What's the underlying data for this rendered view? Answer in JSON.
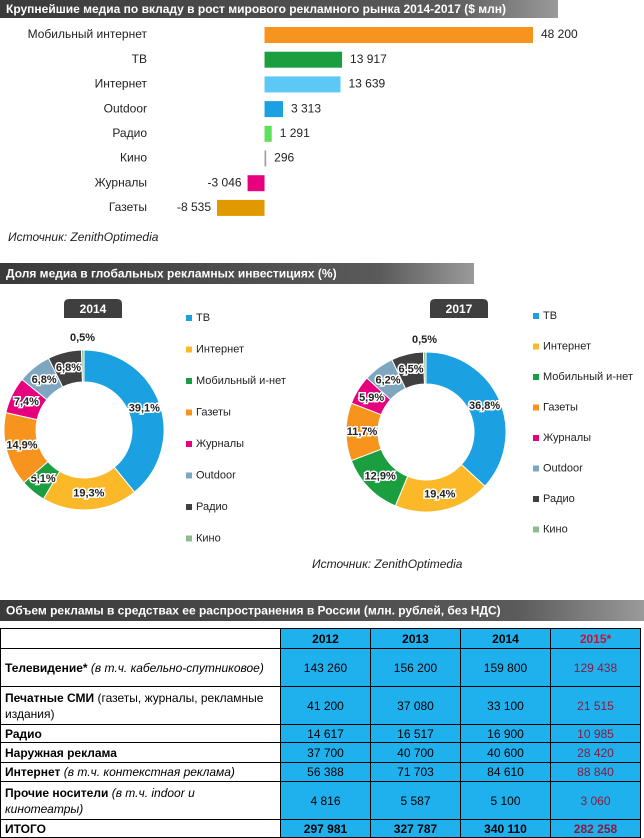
{
  "sections": [
    {
      "title": "Крупнейшие медиа по вкладу в рост мирового рекламного рынка 2014-2017 ($ млн)",
      "source": "Источник: ZenithOptimedia"
    },
    {
      "title": "Доля медиа в глобальных рекламных инвестициях  (%)",
      "source": "Источник: ZenithOptimedia"
    },
    {
      "title": "Объем рекламы в средствах ее распространения в России (млн. рублей, без НДС)"
    }
  ],
  "chart_data": [
    {
      "type": "bar",
      "orientation": "horizontal",
      "categories": [
        "Мобильный интернет",
        "ТВ",
        "Интернет",
        "Outdoor",
        "Радио",
        "Кино",
        "Журналы",
        "Газеты"
      ],
      "values": [
        48200,
        13917,
        13639,
        3313,
        1291,
        296,
        -3046,
        -8535
      ],
      "value_labels": [
        "48 200",
        "13 917",
        "13 639",
        "3 313",
        "1 291",
        "296",
        "-3 046",
        "-8 535"
      ],
      "colors": [
        "#f7941d",
        "#1a9e3f",
        "#5bc8f5",
        "#1ba1e2",
        "#5ee05a",
        "#9e9e9e",
        "#e6007e",
        "#e09a00"
      ]
    },
    {
      "type": "donut",
      "title": "2014",
      "categories": [
        "ТВ",
        "Интернет",
        "Мобильный и-нет",
        "Газеты",
        "Журналы",
        "Outdoor",
        "Радио",
        "Кино"
      ],
      "values": [
        39.1,
        19.3,
        5.1,
        14.9,
        7.4,
        6.8,
        6.8,
        0.5
      ],
      "value_labels": [
        "39,1%",
        "19,3%",
        "5,1%",
        "14,9%",
        "7,4%",
        "6,8%",
        "6,8%",
        "0,5%"
      ],
      "colors": [
        "#1ba1e2",
        "#fbb829",
        "#1a9e3f",
        "#f7941d",
        "#e6007e",
        "#7fa6bf",
        "#404040",
        "#8fbc8f"
      ]
    },
    {
      "type": "donut",
      "title": "2017",
      "categories": [
        "ТВ",
        "Интернет",
        "Мобильный и-нет",
        "Газеты",
        "Журналы",
        "Outdoor",
        "Радио",
        "Кино"
      ],
      "values": [
        36.8,
        19.4,
        12.9,
        11.7,
        5.9,
        6.2,
        6.5,
        0.5
      ],
      "value_labels": [
        "36,8%",
        "19,4%",
        "12,9%",
        "11,7%",
        "5,9%",
        "6,2%",
        "6,5%",
        "0,5%"
      ],
      "colors": [
        "#1ba1e2",
        "#fbb829",
        "#1a9e3f",
        "#f7941d",
        "#e6007e",
        "#7fa6bf",
        "#404040",
        "#8fbc8f"
      ]
    }
  ],
  "table": {
    "header": [
      "2012",
      "2013",
      "2014",
      "2015*"
    ],
    "rows": [
      {
        "label": "Телевидение*",
        "note": "(в т.ч. кабельно-спутниковое)",
        "italic": true,
        "cells": [
          "143 260",
          "156 200",
          "159 800",
          "129 438"
        ]
      },
      {
        "label": "Печатные СМИ",
        "note": "(газеты, журналы, рекламные издания)",
        "italic": false,
        "cells": [
          "41 200",
          "37 080",
          "33 100",
          "21 515"
        ]
      },
      {
        "label": "Радио",
        "cells": [
          "14 617",
          "16 517",
          "16 900",
          "10 985"
        ]
      },
      {
        "label": "Наружная реклама",
        "cells": [
          "37 700",
          "40 700",
          "40 600",
          "28 420"
        ]
      },
      {
        "label": "Интернет",
        "note": "(в т.ч. контекстная реклама)",
        "italic": true,
        "cells": [
          "56 388",
          "71 703",
          "84 610",
          "88 840"
        ]
      },
      {
        "label": "Прочие носители",
        "note": "(в т.ч. indoor и кинотеатры)",
        "italic": true,
        "cells": [
          "4 816",
          "5 587",
          "5 100",
          "3 060"
        ]
      },
      {
        "label": "ИТОГО",
        "cells": [
          "297 981",
          "327 787",
          "340 110",
          "282 258"
        ]
      }
    ]
  }
}
